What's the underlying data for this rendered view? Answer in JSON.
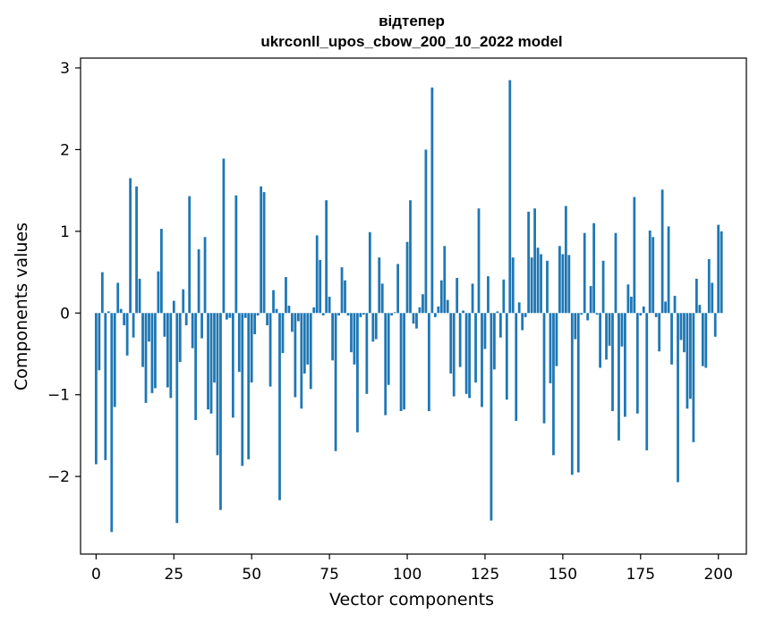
{
  "chart_data": {
    "type": "bar",
    "title": "відтепер",
    "subtitle": "ukrconll_upos_cbow_200_10_2022 model",
    "xlabel": "Vector components",
    "ylabel": "Components values",
    "xlim": [
      -5,
      209
    ],
    "ylim": [
      -2.95,
      3.12
    ],
    "xticks": [
      0,
      25,
      50,
      75,
      100,
      125,
      150,
      175,
      200
    ],
    "yticks": [
      -2,
      -1,
      0,
      1,
      2,
      3
    ],
    "ytick_labels": [
      "−2",
      "−1",
      "0",
      "1",
      "2",
      "3"
    ],
    "bar_color": "#1f77b4",
    "bar_width": 0.8,
    "grid": false,
    "values": [
      -1.85,
      -0.7,
      0.5,
      -1.8,
      0.02,
      -2.68,
      -1.15,
      0.37,
      0.05,
      -0.15,
      -0.52,
      1.65,
      -0.3,
      1.55,
      0.42,
      -0.66,
      -1.1,
      -0.35,
      -0.98,
      -0.92,
      0.51,
      1.03,
      -0.29,
      -0.91,
      -1.04,
      0.15,
      -2.57,
      -0.6,
      0.29,
      -0.15,
      1.43,
      -0.43,
      -1.31,
      0.78,
      -0.31,
      0.93,
      -1.18,
      -1.23,
      -0.85,
      -1.74,
      -2.41,
      1.89,
      -0.08,
      -0.06,
      -1.28,
      1.44,
      -0.72,
      -1.87,
      -0.06,
      -1.79,
      -0.85,
      -0.26,
      -0.03,
      1.55,
      1.48,
      -0.15,
      -0.9,
      0.28,
      0.05,
      -2.29,
      -0.49,
      0.44,
      0.09,
      -0.23,
      -1.03,
      -0.1,
      -1.17,
      -0.74,
      -0.63,
      -0.93,
      0.07,
      0.95,
      0.65,
      -0.03,
      1.38,
      0.2,
      -0.58,
      -1.69,
      -0.03,
      0.56,
      0.4,
      -0.03,
      -0.48,
      -0.63,
      -1.46,
      -0.05,
      -0.02,
      -0.99,
      0.99,
      -0.35,
      -0.32,
      0.68,
      0.36,
      -1.25,
      -0.88,
      -0.03,
      0.01,
      0.6,
      -1.2,
      -1.18,
      0.87,
      1.38,
      -0.13,
      -0.19,
      0.07,
      0.23,
      2.0,
      -1.2,
      2.76,
      -0.05,
      0.08,
      0.4,
      0.82,
      0.16,
      -0.74,
      -1.02,
      0.43,
      -0.66,
      0.03,
      -0.99,
      -1.04,
      0.36,
      -0.85,
      1.28,
      -1.15,
      -0.44,
      0.45,
      -2.54,
      -0.69,
      0.02,
      -0.3,
      0.41,
      -1.06,
      2.85,
      0.68,
      -1.32,
      0.13,
      -0.21,
      -0.05,
      1.24,
      0.68,
      1.28,
      0.8,
      0.72,
      -1.35,
      0.64,
      -0.86,
      -1.74,
      -0.65,
      0.82,
      0.72,
      1.31,
      0.71,
      -1.98,
      -0.32,
      -1.95,
      -0.02,
      0.98,
      -0.09,
      0.33,
      1.1,
      -0.02,
      -0.67,
      0.64,
      -0.57,
      -0.4,
      -1.2,
      0.98,
      -1.56,
      -0.41,
      -1.27,
      0.35,
      0.2,
      1.42,
      -1.23,
      -0.03,
      0.08,
      -1.68,
      1.01,
      0.93,
      -0.05,
      -0.47,
      1.51,
      0.14,
      1.06,
      -0.63,
      0.21,
      -2.07,
      -0.33,
      -0.48,
      -1.17,
      -1.05,
      -1.58,
      0.42,
      0.1,
      -0.65,
      -0.67,
      0.66,
      0.37,
      -0.29,
      1.08,
      1.0
    ]
  }
}
